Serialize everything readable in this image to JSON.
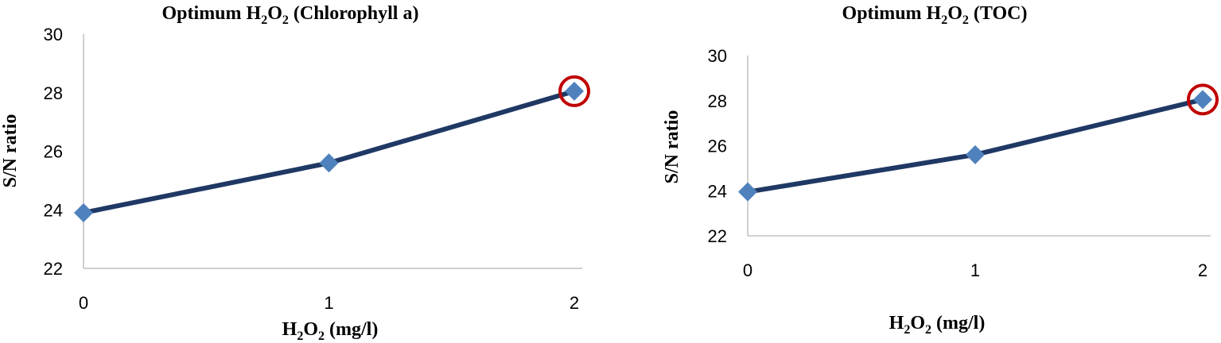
{
  "chart_data": [
    {
      "type": "line",
      "title": "Optimum H2O2 (Chlorophyll a)",
      "title_parts": {
        "prefix": "Optimum H",
        "sub1": "2",
        "mid": "O",
        "sub2": "2",
        "suffix": " (Chlorophyll a)"
      },
      "xlabel": "H2O2 (mg/l)",
      "xlabel_parts": {
        "prefix": "H",
        "sub1": "2",
        "mid": "O",
        "sub2": "2",
        "suffix": " (mg/l)"
      },
      "ylabel": "S/N ratio",
      "x": [
        0,
        1,
        2
      ],
      "x_ticks": [
        "0",
        "1",
        "2"
      ],
      "y_ticks": [
        "22",
        "24",
        "26",
        "28",
        "30"
      ],
      "ylim": [
        22,
        30
      ],
      "series": [
        {
          "values": [
            23.9,
            25.6,
            28.05
          ]
        }
      ],
      "highlight_index": 2,
      "grid": false,
      "colors": {
        "line": "#1f3864",
        "marker": "#4f81bd",
        "highlight": "#c00000"
      }
    },
    {
      "type": "line",
      "title": "Optimum H2O2 (TOC)",
      "title_parts": {
        "prefix": "Optimum H",
        "sub1": "2",
        "mid": "O",
        "sub2": "2",
        "suffix": " (TOC)"
      },
      "xlabel": "H2O2 (mg/l)",
      "xlabel_parts": {
        "prefix": "H",
        "sub1": "2",
        "mid": "O",
        "sub2": "2",
        "suffix": " (mg/l)"
      },
      "ylabel": "S/N ratio",
      "x": [
        0,
        1,
        2
      ],
      "x_ticks": [
        "0",
        "1",
        "2"
      ],
      "y_ticks": [
        "22",
        "24",
        "26",
        "28",
        "30"
      ],
      "ylim": [
        22,
        30
      ],
      "series": [
        {
          "values": [
            23.95,
            25.6,
            28.05
          ]
        }
      ],
      "highlight_index": 2,
      "grid": false,
      "colors": {
        "line": "#1f3864",
        "marker": "#4f81bd",
        "highlight": "#c00000"
      }
    }
  ]
}
